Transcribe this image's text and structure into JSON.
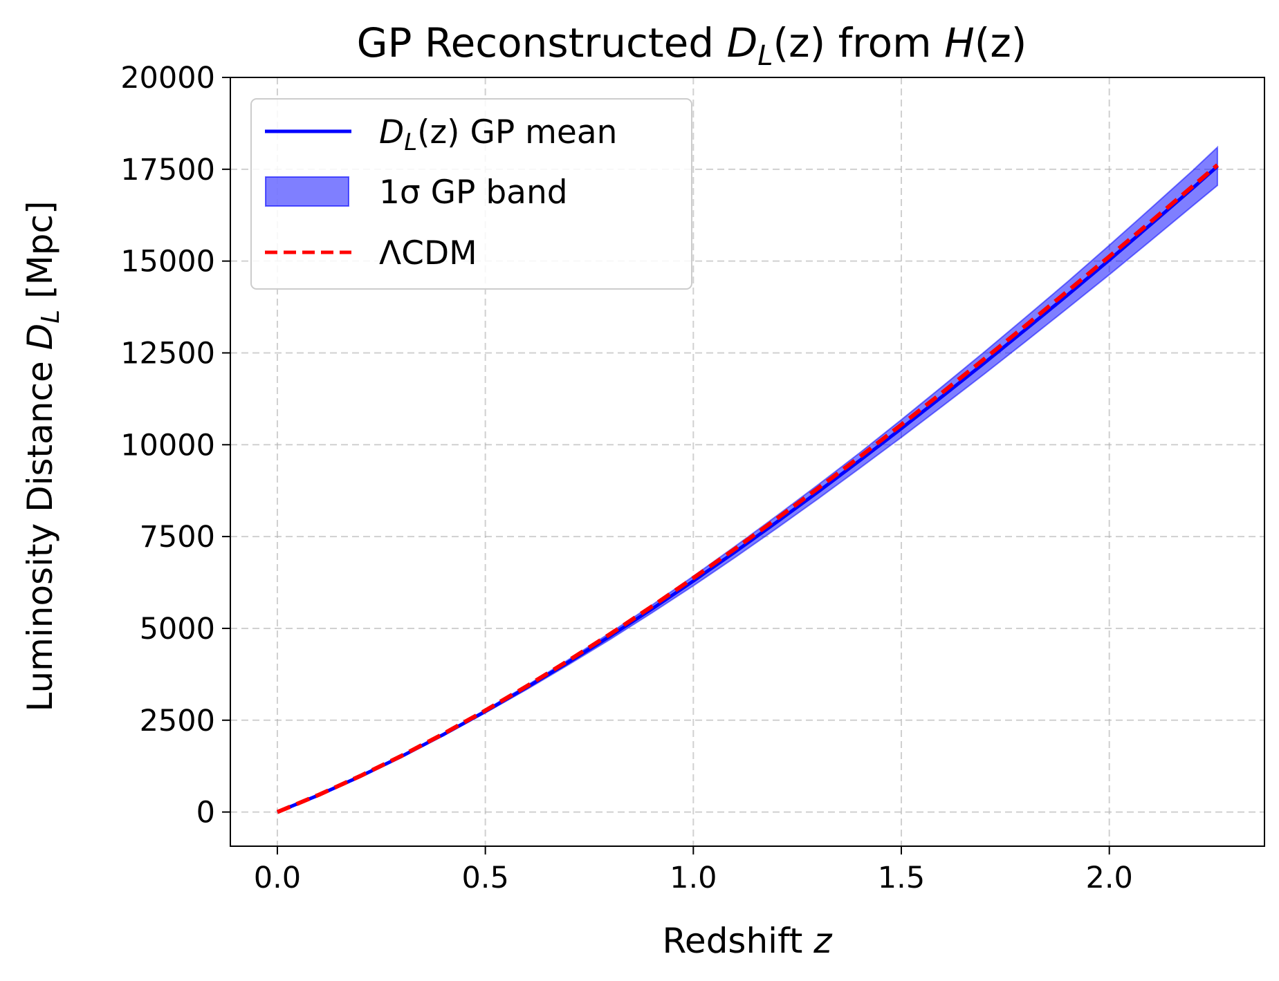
{
  "chart_data": {
    "type": "line",
    "title": {
      "prefix": "GP Reconstructed ",
      "var1": "D",
      "var1_sub": "L",
      "arg1": "(z)",
      "middle": " from ",
      "var2": "H",
      "arg2": "(z)"
    },
    "xlabel": {
      "text": "Redshift ",
      "var": "z"
    },
    "ylabel": {
      "text": "Luminosity Distance ",
      "var": "D",
      "var_sub": "L",
      "unit": " [Mpc]"
    },
    "xlim": [
      -0.113,
      2.373
    ],
    "ylim": [
      -930,
      20000
    ],
    "xticks": [
      {
        "value": 0.0,
        "label": "0.0"
      },
      {
        "value": 0.5,
        "label": "0.5"
      },
      {
        "value": 1.0,
        "label": "1.0"
      },
      {
        "value": 1.5,
        "label": "1.5"
      },
      {
        "value": 2.0,
        "label": "2.0"
      }
    ],
    "yticks": [
      {
        "value": 0,
        "label": "0"
      },
      {
        "value": 2500,
        "label": "2500"
      },
      {
        "value": 5000,
        "label": "5000"
      },
      {
        "value": 7500,
        "label": "7500"
      },
      {
        "value": 10000,
        "label": "10000"
      },
      {
        "value": 12500,
        "label": "12500"
      },
      {
        "value": 15000,
        "label": "15000"
      },
      {
        "value": 17500,
        "label": "17500"
      },
      {
        "value": 20000,
        "label": "20000"
      }
    ],
    "grid": true,
    "legend_position": "upper-left",
    "x": [
      0.0,
      0.1,
      0.2,
      0.3,
      0.4,
      0.5,
      0.6,
      0.7,
      0.8,
      0.9,
      1.0,
      1.1,
      1.2,
      1.3,
      1.4,
      1.5,
      1.6,
      1.7,
      1.8,
      1.9,
      2.0,
      2.1,
      2.2,
      2.26
    ],
    "series": [
      {
        "name": "GP mean",
        "legend_var": "D",
        "legend_sub": "L",
        "legend_arg": "(z)",
        "legend_rest": " GP mean",
        "kind": "line",
        "color": "#0000ff",
        "values": [
          0,
          465,
          975,
          1525,
          2115,
          2740,
          3395,
          4080,
          4790,
          5525,
          6290,
          7080,
          7890,
          8720,
          9570,
          10440,
          11330,
          12230,
          13150,
          14080,
          15030,
          16000,
          16980,
          17580
        ]
      },
      {
        "name": "1σ GP band",
        "kind": "band",
        "color": "#0000ff",
        "fill_opacity": 0.5,
        "lower": [
          0,
          460,
          962,
          1505,
          2085,
          2700,
          3340,
          4010,
          4700,
          5420,
          6160,
          6930,
          7720,
          8530,
          9360,
          10200,
          11060,
          11930,
          12820,
          13720,
          14630,
          15560,
          16500,
          17060
        ],
        "upper": [
          0,
          470,
          988,
          1545,
          2145,
          2780,
          3450,
          4150,
          4880,
          5630,
          6420,
          7230,
          8060,
          8910,
          9780,
          10680,
          11600,
          12530,
          13480,
          14440,
          15430,
          16440,
          17460,
          18100
        ]
      },
      {
        "name": "ΛCDM",
        "kind": "dashed",
        "color": "#ff0000",
        "values": [
          0,
          470,
          985,
          1540,
          2135,
          2765,
          3430,
          4125,
          4845,
          5595,
          6370,
          7165,
          7980,
          8815,
          9670,
          10545,
          11435,
          12340,
          13255,
          14185,
          15125,
          16075,
          17035,
          17615
        ]
      }
    ]
  }
}
